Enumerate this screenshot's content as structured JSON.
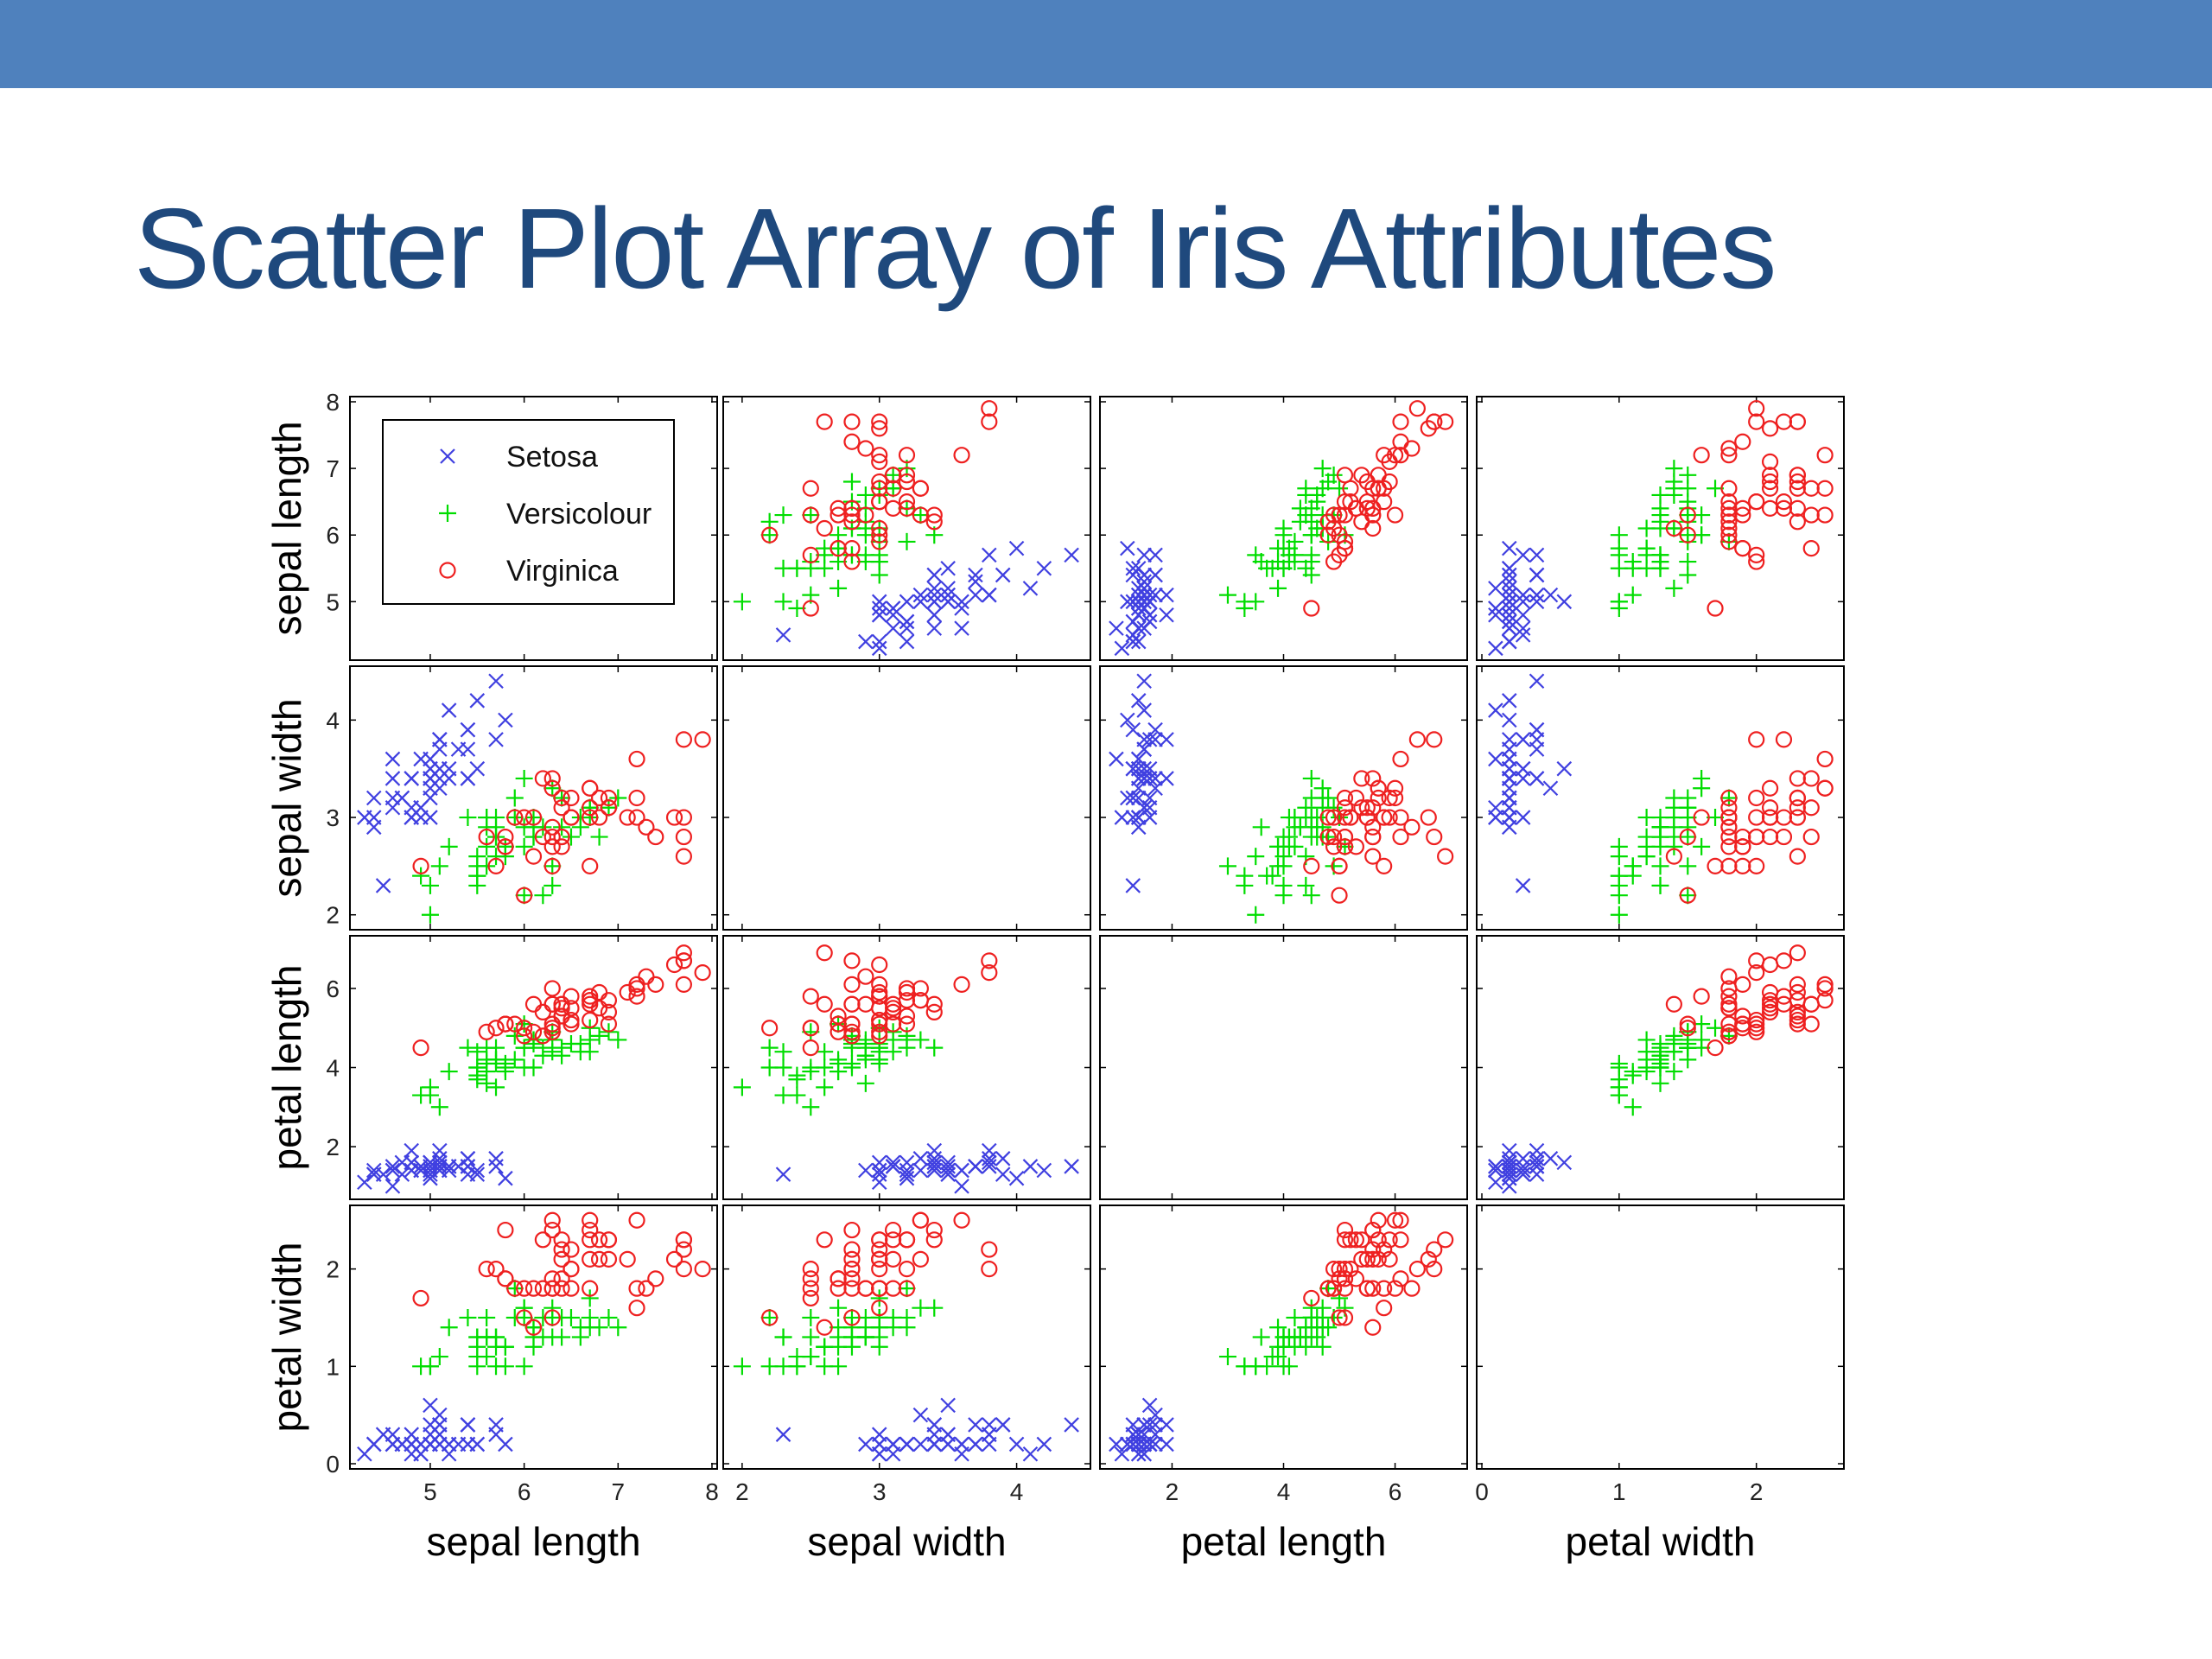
{
  "slide": {
    "title": "Scatter Plot Array of Iris Attributes",
    "bar_color": "#4f81bd",
    "title_color": "#1f497d"
  },
  "chart_data": {
    "type": "scatter",
    "layout": "scatter-matrix",
    "attributes": [
      {
        "key": "sl",
        "label": "sepal length",
        "range": [
          4.2,
          8.0
        ],
        "ticks": [
          5,
          6,
          7,
          8
        ]
      },
      {
        "key": "sw",
        "label": "sepal width",
        "range": [
          1.9,
          4.5
        ],
        "ticks": [
          2,
          3,
          4
        ]
      },
      {
        "key": "pl",
        "label": "petal length",
        "range": [
          0.8,
          7.2
        ],
        "ticks": [
          2,
          4,
          6
        ]
      },
      {
        "key": "pw",
        "label": "petal width",
        "range": [
          0.0,
          2.6
        ],
        "ticks": [
          0,
          1,
          2
        ]
      }
    ],
    "x_tick_labels": [
      [
        "5",
        "6",
        "7",
        "8"
      ],
      [
        "2",
        "3",
        "4"
      ],
      [
        "2",
        "4",
        "6"
      ],
      [
        "0",
        "1",
        "2"
      ]
    ],
    "y_tick_labels": [
      [
        "5",
        "6",
        "7",
        "8"
      ],
      [
        "2",
        "3",
        "4"
      ],
      [
        "2",
        "4",
        "6"
      ],
      [
        "0",
        "1",
        "2"
      ]
    ],
    "diagonal": "empty",
    "legend": {
      "position": "top-left",
      "panel": "sepal length vs sepal width"
    },
    "series": [
      {
        "name": "Setosa",
        "marker": "x",
        "color": "#4040e0",
        "points": [
          [
            5.1,
            3.5,
            1.4,
            0.2
          ],
          [
            4.9,
            3.0,
            1.4,
            0.2
          ],
          [
            4.7,
            3.2,
            1.3,
            0.2
          ],
          [
            4.6,
            3.1,
            1.5,
            0.2
          ],
          [
            5.0,
            3.6,
            1.4,
            0.2
          ],
          [
            5.4,
            3.9,
            1.7,
            0.4
          ],
          [
            4.6,
            3.4,
            1.4,
            0.3
          ],
          [
            5.0,
            3.4,
            1.5,
            0.2
          ],
          [
            4.4,
            2.9,
            1.4,
            0.2
          ],
          [
            4.9,
            3.1,
            1.5,
            0.1
          ],
          [
            5.4,
            3.7,
            1.5,
            0.2
          ],
          [
            4.8,
            3.4,
            1.6,
            0.2
          ],
          [
            4.8,
            3.0,
            1.4,
            0.1
          ],
          [
            4.3,
            3.0,
            1.1,
            0.1
          ],
          [
            5.8,
            4.0,
            1.2,
            0.2
          ],
          [
            5.7,
            4.4,
            1.5,
            0.4
          ],
          [
            5.4,
            3.9,
            1.3,
            0.4
          ],
          [
            5.1,
            3.5,
            1.4,
            0.3
          ],
          [
            5.7,
            3.8,
            1.7,
            0.3
          ],
          [
            5.1,
            3.8,
            1.5,
            0.3
          ],
          [
            5.4,
            3.4,
            1.7,
            0.2
          ],
          [
            5.1,
            3.7,
            1.5,
            0.4
          ],
          [
            4.6,
            3.6,
            1.0,
            0.2
          ],
          [
            5.1,
            3.3,
            1.7,
            0.5
          ],
          [
            4.8,
            3.4,
            1.9,
            0.2
          ],
          [
            5.0,
            3.0,
            1.6,
            0.2
          ],
          [
            5.0,
            3.4,
            1.6,
            0.4
          ],
          [
            5.2,
            3.5,
            1.5,
            0.2
          ],
          [
            5.2,
            3.4,
            1.4,
            0.2
          ],
          [
            4.7,
            3.2,
            1.6,
            0.2
          ],
          [
            4.8,
            3.1,
            1.6,
            0.2
          ],
          [
            5.4,
            3.4,
            1.5,
            0.4
          ],
          [
            5.2,
            4.1,
            1.5,
            0.1
          ],
          [
            5.5,
            4.2,
            1.4,
            0.2
          ],
          [
            4.9,
            3.1,
            1.5,
            0.2
          ],
          [
            5.0,
            3.2,
            1.2,
            0.2
          ],
          [
            5.5,
            3.5,
            1.3,
            0.2
          ],
          [
            4.9,
            3.6,
            1.4,
            0.1
          ],
          [
            4.4,
            3.0,
            1.3,
            0.2
          ],
          [
            5.1,
            3.4,
            1.5,
            0.2
          ],
          [
            5.0,
            3.5,
            1.3,
            0.3
          ],
          [
            4.5,
            2.3,
            1.3,
            0.3
          ],
          [
            4.4,
            3.2,
            1.3,
            0.2
          ],
          [
            5.0,
            3.5,
            1.6,
            0.6
          ],
          [
            5.1,
            3.8,
            1.9,
            0.4
          ],
          [
            4.8,
            3.0,
            1.4,
            0.3
          ],
          [
            5.1,
            3.8,
            1.6,
            0.2
          ],
          [
            4.6,
            3.2,
            1.4,
            0.2
          ],
          [
            5.3,
            3.7,
            1.5,
            0.2
          ],
          [
            5.0,
            3.3,
            1.4,
            0.2
          ]
        ]
      },
      {
        "name": "Versicolour",
        "marker": "+",
        "color": "#00dd00",
        "points": [
          [
            7.0,
            3.2,
            4.7,
            1.4
          ],
          [
            6.4,
            3.2,
            4.5,
            1.5
          ],
          [
            6.9,
            3.1,
            4.9,
            1.5
          ],
          [
            5.5,
            2.3,
            4.0,
            1.3
          ],
          [
            6.5,
            2.8,
            4.6,
            1.5
          ],
          [
            5.7,
            2.8,
            4.5,
            1.3
          ],
          [
            6.3,
            3.3,
            4.7,
            1.6
          ],
          [
            4.9,
            2.4,
            3.3,
            1.0
          ],
          [
            6.6,
            2.9,
            4.6,
            1.3
          ],
          [
            5.2,
            2.7,
            3.9,
            1.4
          ],
          [
            5.0,
            2.0,
            3.5,
            1.0
          ],
          [
            5.9,
            3.0,
            4.2,
            1.5
          ],
          [
            6.0,
            2.2,
            4.0,
            1.0
          ],
          [
            6.1,
            2.9,
            4.7,
            1.4
          ],
          [
            5.6,
            2.9,
            3.6,
            1.3
          ],
          [
            6.7,
            3.1,
            4.4,
            1.4
          ],
          [
            5.6,
            3.0,
            4.5,
            1.5
          ],
          [
            5.8,
            2.7,
            4.1,
            1.0
          ],
          [
            6.2,
            2.2,
            4.5,
            1.5
          ],
          [
            5.6,
            2.5,
            3.9,
            1.1
          ],
          [
            5.9,
            3.2,
            4.8,
            1.8
          ],
          [
            6.1,
            2.8,
            4.0,
            1.3
          ],
          [
            6.3,
            2.5,
            4.9,
            1.5
          ],
          [
            6.1,
            2.8,
            4.7,
            1.2
          ],
          [
            6.4,
            2.9,
            4.3,
            1.3
          ],
          [
            6.6,
            3.0,
            4.4,
            1.4
          ],
          [
            6.8,
            2.8,
            4.8,
            1.4
          ],
          [
            6.7,
            3.0,
            5.0,
            1.7
          ],
          [
            6.0,
            2.9,
            4.5,
            1.5
          ],
          [
            5.7,
            2.6,
            3.5,
            1.0
          ],
          [
            5.5,
            2.4,
            3.8,
            1.1
          ],
          [
            5.5,
            2.4,
            3.7,
            1.0
          ],
          [
            5.8,
            2.7,
            3.9,
            1.2
          ],
          [
            6.0,
            2.7,
            5.1,
            1.6
          ],
          [
            5.4,
            3.0,
            4.5,
            1.5
          ],
          [
            6.0,
            3.4,
            4.5,
            1.6
          ],
          [
            6.7,
            3.1,
            4.7,
            1.5
          ],
          [
            6.3,
            2.3,
            4.4,
            1.3
          ],
          [
            5.6,
            3.0,
            4.1,
            1.3
          ],
          [
            5.5,
            2.5,
            4.0,
            1.3
          ],
          [
            5.5,
            2.6,
            4.4,
            1.2
          ],
          [
            6.1,
            3.0,
            4.6,
            1.4
          ],
          [
            5.8,
            2.6,
            4.0,
            1.2
          ],
          [
            5.0,
            2.3,
            3.3,
            1.0
          ],
          [
            5.6,
            2.7,
            4.2,
            1.3
          ],
          [
            5.7,
            3.0,
            4.2,
            1.2
          ],
          [
            5.7,
            2.9,
            4.2,
            1.3
          ],
          [
            6.2,
            2.9,
            4.3,
            1.3
          ],
          [
            5.1,
            2.5,
            3.0,
            1.1
          ],
          [
            5.7,
            2.8,
            4.1,
            1.3
          ]
        ]
      },
      {
        "name": "Virginica",
        "marker": "o",
        "color": "#ee2020",
        "points": [
          [
            6.3,
            3.3,
            6.0,
            2.5
          ],
          [
            5.8,
            2.7,
            5.1,
            1.9
          ],
          [
            7.1,
            3.0,
            5.9,
            2.1
          ],
          [
            6.3,
            2.9,
            5.6,
            1.8
          ],
          [
            6.5,
            3.0,
            5.8,
            2.2
          ],
          [
            7.6,
            3.0,
            6.6,
            2.1
          ],
          [
            4.9,
            2.5,
            4.5,
            1.7
          ],
          [
            7.3,
            2.9,
            6.3,
            1.8
          ],
          [
            6.7,
            2.5,
            5.8,
            1.8
          ],
          [
            7.2,
            3.6,
            6.1,
            2.5
          ],
          [
            6.5,
            3.2,
            5.1,
            2.0
          ],
          [
            6.4,
            2.7,
            5.3,
            1.9
          ],
          [
            6.8,
            3.0,
            5.5,
            2.1
          ],
          [
            5.7,
            2.5,
            5.0,
            2.0
          ],
          [
            5.8,
            2.8,
            5.1,
            2.4
          ],
          [
            6.4,
            3.2,
            5.3,
            2.3
          ],
          [
            6.5,
            3.0,
            5.5,
            1.8
          ],
          [
            7.7,
            3.8,
            6.7,
            2.2
          ],
          [
            7.7,
            2.6,
            6.9,
            2.3
          ],
          [
            6.0,
            2.2,
            5.0,
            1.5
          ],
          [
            6.9,
            3.2,
            5.7,
            2.3
          ],
          [
            5.6,
            2.8,
            4.9,
            2.0
          ],
          [
            7.7,
            2.8,
            6.7,
            2.0
          ],
          [
            6.3,
            2.7,
            4.9,
            1.8
          ],
          [
            6.7,
            3.3,
            5.7,
            2.1
          ],
          [
            7.2,
            3.2,
            6.0,
            1.8
          ],
          [
            6.2,
            2.8,
            4.8,
            1.8
          ],
          [
            6.1,
            3.0,
            4.9,
            1.8
          ],
          [
            6.4,
            2.8,
            5.6,
            2.1
          ],
          [
            7.2,
            3.0,
            5.8,
            1.6
          ],
          [
            7.4,
            2.8,
            6.1,
            1.9
          ],
          [
            7.9,
            3.8,
            6.4,
            2.0
          ],
          [
            6.4,
            2.8,
            5.6,
            2.2
          ],
          [
            6.3,
            2.8,
            5.1,
            1.5
          ],
          [
            6.1,
            2.6,
            5.6,
            1.4
          ],
          [
            7.7,
            3.0,
            6.1,
            2.3
          ],
          [
            6.3,
            3.4,
            5.6,
            2.4
          ],
          [
            6.4,
            3.1,
            5.5,
            1.8
          ],
          [
            6.0,
            3.0,
            4.8,
            1.8
          ],
          [
            6.9,
            3.1,
            5.4,
            2.1
          ],
          [
            6.7,
            3.1,
            5.6,
            2.4
          ],
          [
            6.9,
            3.1,
            5.1,
            2.3
          ],
          [
            5.8,
            2.7,
            5.1,
            1.9
          ],
          [
            6.8,
            3.2,
            5.9,
            2.3
          ],
          [
            6.7,
            3.3,
            5.7,
            2.5
          ],
          [
            6.7,
            3.0,
            5.2,
            2.3
          ],
          [
            6.3,
            2.5,
            5.0,
            1.9
          ],
          [
            6.5,
            3.0,
            5.2,
            2.0
          ],
          [
            6.2,
            3.4,
            5.4,
            2.3
          ],
          [
            5.9,
            3.0,
            5.1,
            1.8
          ]
        ]
      }
    ]
  }
}
